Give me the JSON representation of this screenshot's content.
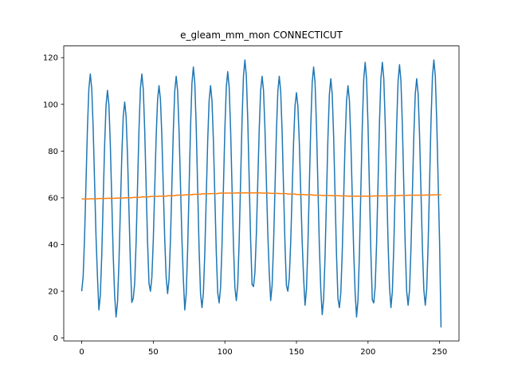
{
  "chart_data": {
    "type": "line",
    "title": "e_gleam_mm_mon CONNECTICUT",
    "x": [
      0,
      1,
      2,
      3,
      4,
      5,
      6,
      7,
      8,
      9,
      10,
      11,
      12,
      13,
      14,
      15,
      16,
      17,
      18,
      19,
      20,
      21,
      22,
      23,
      24,
      25,
      26,
      27,
      28,
      29,
      30,
      31,
      32,
      33,
      34,
      35,
      36,
      37,
      38,
      39,
      40,
      41,
      42,
      43,
      44,
      45,
      46,
      47,
      48,
      49,
      50,
      51,
      52,
      53,
      54,
      55,
      56,
      57,
      58,
      59,
      60,
      61,
      62,
      63,
      64,
      65,
      66,
      67,
      68,
      69,
      70,
      71,
      72,
      73,
      74,
      75,
      76,
      77,
      78,
      79,
      80,
      81,
      82,
      83,
      84,
      85,
      86,
      87,
      88,
      89,
      90,
      91,
      92,
      93,
      94,
      95,
      96,
      97,
      98,
      99,
      100,
      101,
      102,
      103,
      104,
      105,
      106,
      107,
      108,
      109,
      110,
      111,
      112,
      113,
      114,
      115,
      116,
      117,
      118,
      119,
      120,
      121,
      122,
      123,
      124,
      125,
      126,
      127,
      128,
      129,
      130,
      131,
      132,
      133,
      134,
      135,
      136,
      137,
      138,
      139,
      140,
      141,
      142,
      143,
      144,
      145,
      146,
      147,
      148,
      149,
      150,
      151,
      152,
      153,
      154,
      155,
      156,
      157,
      158,
      159,
      160,
      161,
      162,
      163,
      164,
      165,
      166,
      167,
      168,
      169,
      170,
      171,
      172,
      173,
      174,
      175,
      176,
      177,
      178,
      179,
      180,
      181,
      182,
      183,
      184,
      185,
      186,
      187,
      188,
      189,
      190,
      191,
      192,
      193,
      194,
      195,
      196,
      197,
      198,
      199,
      200,
      201,
      202,
      203,
      204,
      205,
      206,
      207,
      208,
      209,
      210,
      211,
      212,
      213,
      214,
      215,
      216,
      217,
      218,
      219,
      220,
      221,
      222,
      223,
      224,
      225,
      226,
      227,
      228,
      229,
      230,
      231,
      232,
      233,
      234,
      235,
      236,
      237,
      238,
      239,
      240,
      241,
      242,
      243,
      244,
      245,
      246,
      247,
      248,
      249,
      250,
      251
    ],
    "series": [
      {
        "color": "#1f77b4",
        "values": [
          20,
          26.2,
          43.3,
          66.5,
          89.8,
          106.8,
          113,
          106.8,
          89.8,
          66.5,
          43.3,
          26.2,
          12,
          18.3,
          35.5,
          59,
          82.5,
          99.7,
          106,
          99.7,
          82.5,
          59,
          35.5,
          18.3,
          9,
          15.2,
          32,
          55,
          78,
          94.8,
          101,
          94.8,
          78,
          55,
          32,
          15.2,
          17,
          23.4,
          41,
          65,
          89,
          106.6,
          113,
          106.6,
          89,
          65,
          41,
          23.4,
          20,
          25.9,
          42,
          64,
          86,
          102.1,
          108,
          102.1,
          86,
          64,
          42,
          25.9,
          19,
          25.2,
          42.3,
          65.5,
          88.8,
          105.8,
          112,
          105.8,
          88.8,
          65.5,
          42.3,
          25.2,
          12,
          19,
          38,
          64,
          90,
          109,
          116,
          109,
          90,
          64,
          38,
          19,
          13,
          19.4,
          36.8,
          60.5,
          84.3,
          101.6,
          108,
          101.6,
          84.3,
          60.5,
          36.8,
          19.4,
          15,
          21.6,
          39.8,
          64.5,
          89.3,
          107.4,
          114,
          107.4,
          89.3,
          64.5,
          39.8,
          21.6,
          16,
          22.9,
          41.8,
          67.5,
          93.3,
          112.1,
          119,
          112.1,
          93.3,
          67.5,
          41.8,
          22.9,
          22,
          28,
          44.5,
          67,
          89.5,
          106,
          112,
          106,
          89.5,
          67,
          44.5,
          28,
          16,
          22.4,
          40,
          64,
          88,
          105.6,
          112,
          105.6,
          88,
          64,
          40,
          22.4,
          20,
          25.7,
          41.3,
          62.5,
          83.8,
          99.3,
          105,
          99.3,
          83.8,
          62.5,
          41.3,
          25.7,
          14,
          20.8,
          39.5,
          65,
          90.5,
          109.2,
          116,
          109.2,
          90.5,
          65,
          39.5,
          20.8,
          10,
          16.8,
          35.3,
          60.5,
          85.8,
          104.2,
          111,
          104.2,
          85.8,
          60.5,
          35.3,
          16.8,
          13,
          19.4,
          36.8,
          60.5,
          84.3,
          101.6,
          108,
          101.6,
          84.3,
          60.5,
          36.8,
          19.4,
          9,
          16.3,
          36.3,
          63.5,
          90.8,
          110.7,
          118,
          110.7,
          90.8,
          63.5,
          36.3,
          16.3,
          15,
          21.9,
          40.8,
          66.5,
          92.3,
          111.1,
          118,
          111.1,
          92.3,
          66.5,
          40.8,
          21.9,
          13,
          20,
          39,
          65,
          91,
          110,
          117,
          110,
          91,
          65,
          39,
          20,
          14,
          20.5,
          38.3,
          62.5,
          86.8,
          104.5,
          111,
          104.5,
          86.8,
          62.5,
          38.3,
          20.5,
          14,
          21,
          40.3,
          66.5,
          92.8,
          112,
          119,
          112,
          92.8,
          66.5,
          40.3,
          4.5
        ]
      },
      {
        "color": "#ff7f0e",
        "values": [
          59.5,
          59.5,
          59.5,
          59.5,
          59.5,
          59.5,
          59.6,
          59.6,
          59.6,
          59.6,
          59.6,
          59.6,
          59.7,
          59.7,
          59.7,
          59.7,
          59.7,
          59.7,
          59.8,
          59.8,
          59.8,
          59.8,
          59.8,
          59.8,
          59.9,
          59.9,
          59.9,
          59.9,
          59.9,
          59.9,
          60,
          60,
          60,
          60,
          60,
          60,
          60.2,
          60.2,
          60.2,
          60.2,
          60.2,
          60.2,
          60.4,
          60.4,
          60.4,
          60.4,
          60.4,
          60.4,
          60.6,
          60.6,
          60.6,
          60.6,
          60.6,
          60.6,
          60.7,
          60.7,
          60.7,
          60.7,
          60.7,
          60.7,
          60.9,
          60.9,
          60.9,
          60.9,
          60.9,
          60.9,
          61.1,
          61.1,
          61.1,
          61.1,
          61.1,
          61.1,
          61.3,
          61.3,
          61.3,
          61.3,
          61.3,
          61.3,
          61.5,
          61.5,
          61.5,
          61.5,
          61.5,
          61.5,
          61.7,
          61.7,
          61.7,
          61.7,
          61.7,
          61.7,
          61.8,
          61.8,
          61.8,
          61.8,
          61.8,
          61.8,
          62,
          62,
          62,
          62,
          62,
          62,
          62,
          62,
          62,
          62,
          62,
          62,
          62.1,
          62.1,
          62.1,
          62.1,
          62.1,
          62.1,
          62.1,
          62.1,
          62.1,
          62.1,
          62.1,
          62.1,
          62.1,
          62.1,
          62.1,
          62.1,
          62.1,
          62.1,
          62,
          62,
          62,
          62,
          62,
          62,
          61.9,
          61.9,
          61.9,
          61.9,
          61.9,
          61.9,
          61.8,
          61.8,
          61.8,
          61.8,
          61.8,
          61.8,
          61.6,
          61.6,
          61.6,
          61.6,
          61.6,
          61.6,
          61.4,
          61.4,
          61.4,
          61.4,
          61.4,
          61.4,
          61.3,
          61.3,
          61.3,
          61.3,
          61.3,
          61.3,
          61.1,
          61.1,
          61.1,
          61.1,
          61.1,
          61.1,
          61,
          61,
          61,
          61,
          61,
          61,
          60.9,
          60.9,
          60.9,
          60.9,
          60.9,
          60.9,
          60.8,
          60.8,
          60.8,
          60.8,
          60.8,
          60.8,
          60.7,
          60.7,
          60.7,
          60.7,
          60.7,
          60.7,
          60.7,
          60.7,
          60.7,
          60.7,
          60.7,
          60.7,
          60.7,
          60.7,
          60.7,
          60.7,
          60.7,
          60.7,
          60.8,
          60.8,
          60.8,
          60.8,
          60.8,
          60.8,
          60.8,
          60.8,
          60.8,
          60.8,
          60.8,
          60.8,
          60.9,
          60.9,
          60.9,
          60.9,
          60.9,
          60.9,
          61,
          61,
          61,
          61,
          61,
          61,
          61.1,
          61.1,
          61.1,
          61.1,
          61.1,
          61.1,
          61.1,
          61.1,
          61.1,
          61.1,
          61.1,
          61.1,
          61.2,
          61.2,
          61.2,
          61.2,
          61.2,
          61.2,
          61.3,
          61.3,
          61.3,
          61.3,
          61.3,
          61.3
        ]
      }
    ],
    "xlim": [
      -12.55,
      263.55
    ],
    "xticks": [
      0,
      50,
      100,
      150,
      200,
      250
    ],
    "ylim": [
      -1.24,
      125
    ],
    "yticks": [
      0,
      20,
      40,
      60,
      80,
      100,
      120
    ],
    "grid": false
  }
}
